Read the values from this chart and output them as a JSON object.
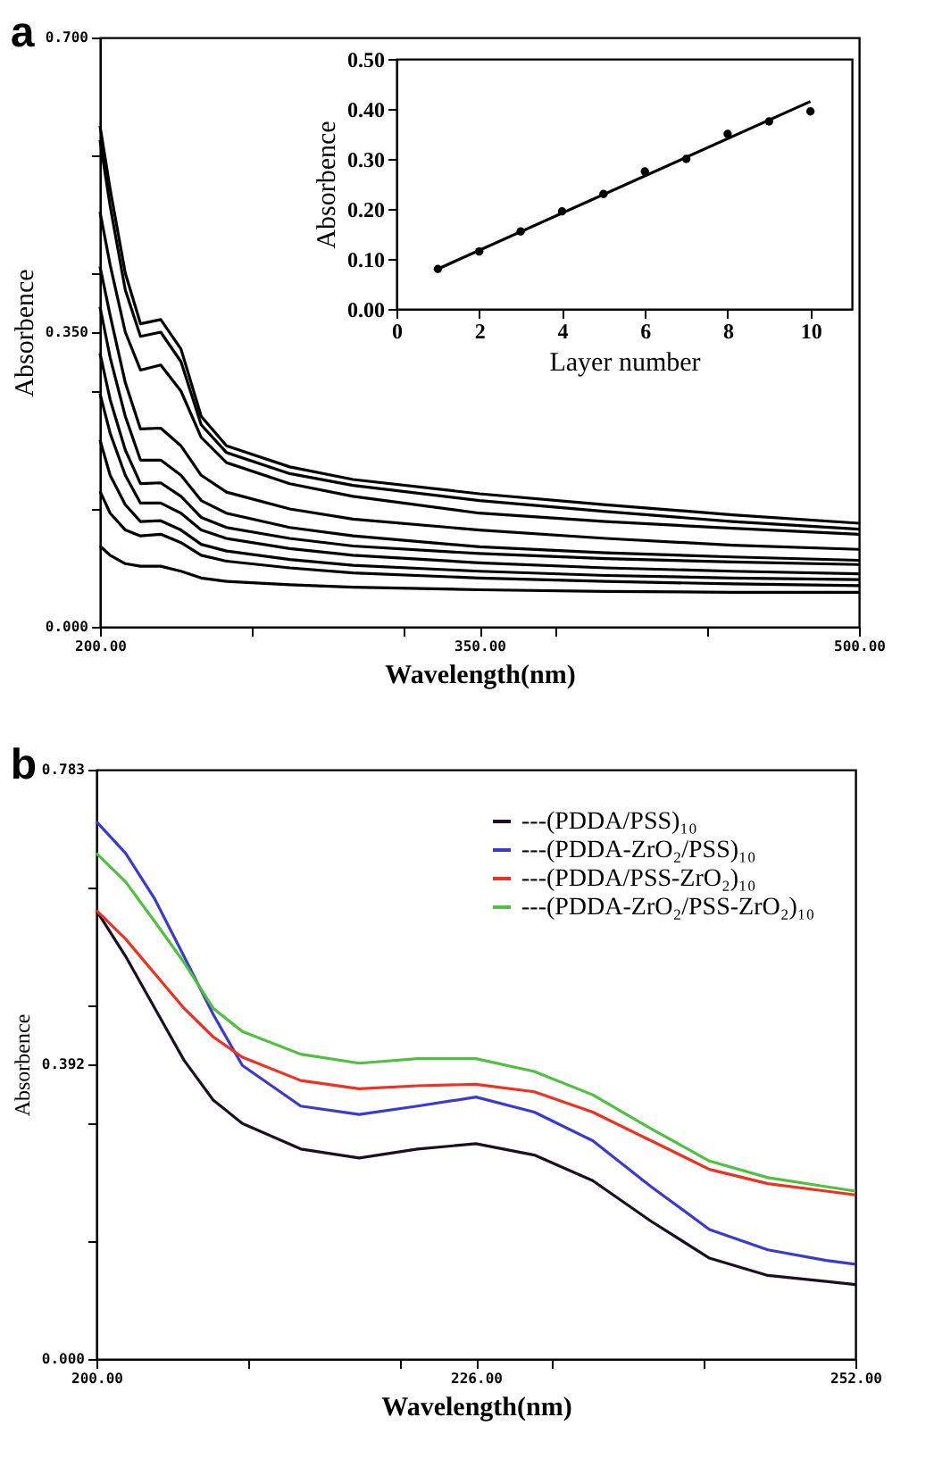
{
  "chart_data": [
    {
      "type": "line",
      "title": "a",
      "xlabel": "Wavelength(nm)",
      "ylabel": "Absorbence",
      "xlim": [
        200,
        500
      ],
      "ylim": [
        0,
        0.7
      ],
      "xticks": [
        {
          "value": 200,
          "label": "200.00"
        },
        {
          "value": 260,
          "label": null
        },
        {
          "value": 320,
          "label": null
        },
        {
          "value": 350,
          "label": "350.00"
        },
        {
          "value": 380,
          "label": null
        },
        {
          "value": 440,
          "label": null
        },
        {
          "value": 500,
          "label": "500.00"
        }
      ],
      "yticks": [
        {
          "value": 0,
          "label": "0.000"
        },
        {
          "value": 0.14,
          "label": null
        },
        {
          "value": 0.28,
          "label": null
        },
        {
          "value": 0.35,
          "label": "0.350"
        },
        {
          "value": 0.42,
          "label": null
        },
        {
          "value": 0.56,
          "label": null
        },
        {
          "value": 0.7,
          "label": "0.700"
        }
      ],
      "x": [
        200,
        204,
        210,
        216,
        224,
        232,
        240,
        250,
        275,
        300,
        350,
        400,
        450,
        500
      ],
      "line_style": "solid",
      "marker": "none",
      "series": [
        {
          "color": "#000000",
          "values": [
            0.595,
            0.52,
            0.42,
            0.36,
            0.365,
            0.33,
            0.25,
            0.215,
            0.19,
            0.175,
            0.158,
            0.145,
            0.133,
            0.123
          ]
        },
        {
          "color": "#000000",
          "values": [
            0.578,
            0.5,
            0.4,
            0.345,
            0.35,
            0.315,
            0.24,
            0.207,
            0.182,
            0.168,
            0.15,
            0.137,
            0.125,
            0.116
          ]
        },
        {
          "color": "#000000",
          "values": [
            0.493,
            0.43,
            0.35,
            0.305,
            0.311,
            0.28,
            0.225,
            0.195,
            0.17,
            0.155,
            0.135,
            0.125,
            0.117,
            0.11
          ]
        },
        {
          "color": "#000000",
          "values": [
            0.428,
            0.37,
            0.29,
            0.235,
            0.236,
            0.215,
            0.18,
            0.16,
            0.14,
            0.128,
            0.115,
            0.105,
            0.097,
            0.092
          ]
        },
        {
          "color": "#000000",
          "values": [
            0.38,
            0.32,
            0.25,
            0.198,
            0.198,
            0.18,
            0.15,
            0.135,
            0.118,
            0.108,
            0.095,
            0.088,
            0.083,
            0.079
          ]
        },
        {
          "color": "#000000",
          "values": [
            0.325,
            0.27,
            0.21,
            0.17,
            0.171,
            0.155,
            0.13,
            0.118,
            0.105,
            0.096,
            0.087,
            0.081,
            0.077,
            0.074
          ]
        },
        {
          "color": "#000000",
          "values": [
            0.277,
            0.23,
            0.18,
            0.147,
            0.147,
            0.135,
            0.115,
            0.105,
            0.093,
            0.085,
            0.076,
            0.07,
            0.066,
            0.063
          ]
        },
        {
          "color": "#000000",
          "values": [
            0.222,
            0.18,
            0.145,
            0.125,
            0.126,
            0.115,
            0.098,
            0.09,
            0.08,
            0.073,
            0.066,
            0.061,
            0.058,
            0.056
          ]
        },
        {
          "color": "#000000",
          "values": [
            0.161,
            0.135,
            0.115,
            0.108,
            0.11,
            0.1,
            0.085,
            0.078,
            0.07,
            0.064,
            0.058,
            0.054,
            0.051,
            0.049
          ]
        },
        {
          "color": "#000000",
          "values": [
            0.096,
            0.085,
            0.075,
            0.072,
            0.072,
            0.066,
            0.058,
            0.054,
            0.05,
            0.047,
            0.044,
            0.042,
            0.041,
            0.041
          ]
        }
      ]
    },
    {
      "type": "scatter",
      "xlabel": "Layer number",
      "ylabel": "Absorbence",
      "xlim": [
        0,
        11
      ],
      "ylim": [
        0,
        0.5
      ],
      "xticks": [
        0,
        2,
        4,
        6,
        8,
        10
      ],
      "yticks": [
        {
          "value": 0,
          "label": "0.00"
        },
        {
          "value": 0.1,
          "label": "0.10"
        },
        {
          "value": 0.2,
          "label": "0.20"
        },
        {
          "value": 0.3,
          "label": "0.30"
        },
        {
          "value": 0.4,
          "label": "0.40"
        },
        {
          "value": 0.5,
          "label": "0.50"
        }
      ],
      "series": [
        {
          "marker": "circle",
          "color": "#000000",
          "x": [
            1,
            2,
            3,
            4,
            5,
            6,
            7,
            8,
            9,
            10
          ],
          "values": [
            0.08,
            0.115,
            0.155,
            0.195,
            0.23,
            0.275,
            0.3,
            0.35,
            0.375,
            0.395
          ]
        },
        {
          "type": "line",
          "marker": "none",
          "color": "#000000",
          "x": [
            1,
            10
          ],
          "values": [
            0.08,
            0.415
          ]
        }
      ]
    },
    {
      "type": "line",
      "title": "b",
      "xlabel": "Wavelength(nm)",
      "ylabel": "Absorbence",
      "xlim": [
        200,
        252
      ],
      "ylim": [
        0,
        0.783
      ],
      "xticks": [
        {
          "value": 200,
          "label": "200.00"
        },
        {
          "value": 210.4,
          "label": null
        },
        {
          "value": 220.8,
          "label": null
        },
        {
          "value": 226,
          "label": "226.00"
        },
        {
          "value": 231.2,
          "label": null
        },
        {
          "value": 241.6,
          "label": null
        },
        {
          "value": 252,
          "label": "252.00"
        }
      ],
      "yticks": [
        {
          "value": 0,
          "label": "0.000"
        },
        {
          "value": 0.1566,
          "label": null
        },
        {
          "value": 0.3132,
          "label": null
        },
        {
          "value": 0.392,
          "label": "0.392"
        },
        {
          "value": 0.4698,
          "label": null
        },
        {
          "value": 0.6264,
          "label": null
        },
        {
          "value": 0.783,
          "label": "0.783"
        }
      ],
      "x": [
        200,
        202,
        204,
        206,
        208,
        210,
        214,
        218,
        222,
        226,
        230,
        234,
        238,
        242,
        246,
        250,
        252
      ],
      "legend": "top right",
      "line_style": "solid",
      "marker": "none",
      "series": [
        {
          "name": "---(PDDA/PSS)₁₀",
          "color": "#1a1020",
          "values": [
            0.596,
            0.535,
            0.466,
            0.397,
            0.344,
            0.313,
            0.279,
            0.267,
            0.279,
            0.286,
            0.271,
            0.237,
            0.183,
            0.134,
            0.111,
            0.103,
            0.099
          ]
        },
        {
          "name": "---(PDDA-ZrO₂/PSS)₁₀",
          "color": "#3a3ad0",
          "values": [
            0.714,
            0.672,
            0.611,
            0.535,
            0.458,
            0.39,
            0.336,
            0.325,
            0.336,
            0.348,
            0.328,
            0.29,
            0.229,
            0.172,
            0.145,
            0.131,
            0.126
          ]
        },
        {
          "name": "---(PDDA/PSS-ZrO₂)₁₀",
          "color": "#f03020",
          "values": [
            0.596,
            0.558,
            0.512,
            0.466,
            0.428,
            0.401,
            0.37,
            0.359,
            0.363,
            0.365,
            0.355,
            0.328,
            0.29,
            0.252,
            0.233,
            0.223,
            0.218
          ]
        },
        {
          "name": "---(PDDA-ZrO₂/PSS-ZrO₂)₁₀",
          "color": "#50c040",
          "values": [
            0.672,
            0.634,
            0.581,
            0.527,
            0.466,
            0.435,
            0.405,
            0.393,
            0.399,
            0.399,
            0.382,
            0.351,
            0.306,
            0.263,
            0.241,
            0.229,
            0.223
          ]
        }
      ]
    }
  ]
}
